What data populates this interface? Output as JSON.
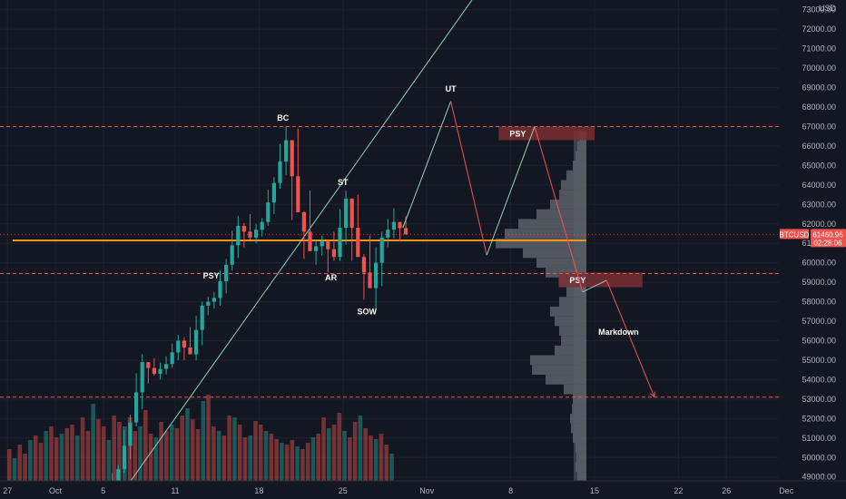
{
  "chart_data": {
    "type": "candlestick",
    "symbol": "BTCUSD",
    "currency": "USD",
    "last_price": "61460.96",
    "countdown": "02:28:06",
    "y_ticks": [
      49000,
      50000,
      51000,
      52000,
      53000,
      54000,
      55000,
      56000,
      57000,
      58000,
      59000,
      60000,
      61000,
      62000,
      63000,
      64000,
      65000,
      66000,
      67000,
      68000,
      69000,
      70000,
      71000,
      72000,
      73000
    ],
    "x_ticks": [
      "27",
      "Oct",
      "5",
      "11",
      "18",
      "25",
      "Nov",
      "8",
      "15",
      "22",
      "26",
      "Dec"
    ],
    "ylim": [
      48800,
      73500
    ],
    "colors": {
      "bg": "#131722",
      "up": "#26a69a",
      "down": "#ef5350",
      "level": "#f7931a",
      "dashed": "#ef5350",
      "trend": "#8fd1b8",
      "volume_profile": "#5d6169",
      "box": "#7a2e33"
    },
    "candles": [
      {
        "d": "Oct 6",
        "o": 48200,
        "h": 49600,
        "l": 48000,
        "c": 49400
      },
      {
        "d": "Oct 7",
        "o": 49400,
        "h": 52200,
        "l": 49200,
        "c": 51800
      },
      {
        "d": "Oct 8",
        "o": 51800,
        "h": 55300,
        "l": 51600,
        "c": 54900
      },
      {
        "d": "Oct 9",
        "o": 54900,
        "h": 55100,
        "l": 53800,
        "c": 54300
      },
      {
        "d": "Oct 10",
        "o": 54300,
        "h": 55200,
        "l": 54000,
        "c": 54800
      },
      {
        "d": "Oct 11",
        "o": 54800,
        "h": 56300,
        "l": 54600,
        "c": 56000
      },
      {
        "d": "Oct 12",
        "o": 56000,
        "h": 56700,
        "l": 55000,
        "c": 55300
      },
      {
        "d": "Oct 13",
        "o": 55300,
        "h": 58000,
        "l": 55000,
        "c": 57800
      },
      {
        "d": "Oct 14",
        "o": 57800,
        "h": 58500,
        "l": 57300,
        "c": 58200
      },
      {
        "d": "Oct 15",
        "o": 58200,
        "h": 60200,
        "l": 57800,
        "c": 59900
      },
      {
        "d": "Oct 16",
        "o": 59900,
        "h": 62400,
        "l": 59600,
        "c": 61900
      },
      {
        "d": "Oct 17",
        "o": 61900,
        "h": 62500,
        "l": 60800,
        "c": 61300
      },
      {
        "d": "Oct 18",
        "o": 61300,
        "h": 62300,
        "l": 61000,
        "c": 62100
      },
      {
        "d": "Oct 19",
        "o": 62100,
        "h": 64400,
        "l": 61900,
        "c": 64100
      },
      {
        "d": "Oct 20",
        "o": 64100,
        "h": 67000,
        "l": 63800,
        "c": 66300
      },
      {
        "d": "Oct 21",
        "o": 66300,
        "h": 66900,
        "l": 62200,
        "c": 62600
      },
      {
        "d": "Oct 22",
        "o": 62600,
        "h": 63700,
        "l": 60200,
        "c": 60600
      },
      {
        "d": "Oct 23",
        "o": 60600,
        "h": 61400,
        "l": 59900,
        "c": 61100
      },
      {
        "d": "Oct 24",
        "o": 61100,
        "h": 61600,
        "l": 59500,
        "c": 60300
      },
      {
        "d": "Oct 25",
        "o": 60300,
        "h": 63700,
        "l": 60100,
        "c": 63300
      },
      {
        "d": "Oct 26",
        "o": 63300,
        "h": 63500,
        "l": 60100,
        "c": 60300
      },
      {
        "d": "Oct 27",
        "o": 60300,
        "h": 61400,
        "l": 58100,
        "c": 58700
      },
      {
        "d": "Oct 28",
        "o": 58700,
        "h": 61600,
        "l": 57600,
        "c": 61300
      },
      {
        "d": "Oct 29",
        "o": 61300,
        "h": 62800,
        "l": 60800,
        "c": 62100
      },
      {
        "d": "Oct 30",
        "o": 62100,
        "h": 62400,
        "l": 61100,
        "c": 61460
      }
    ],
    "levels": {
      "orange": 61150,
      "dashed": [
        67000,
        59450,
        53100
      ]
    },
    "labels": [
      {
        "text": "PSY",
        "x": "Oct 14",
        "y": 59200
      },
      {
        "text": "BC",
        "x": "Oct 20",
        "y": 67300
      },
      {
        "text": "ST",
        "x": "Oct 25",
        "y": 64000
      },
      {
        "text": "AR",
        "x": "Oct 24",
        "y": 59100
      },
      {
        "text": "SOW",
        "x": "Oct 27",
        "y": 57350
      },
      {
        "text": "UT",
        "x": "Nov 3",
        "y": 68800
      }
    ],
    "zones": [
      {
        "text": "PSY",
        "x0": "Nov 7",
        "x1": "Nov 15",
        "y0": 66300,
        "y1": 67000
      },
      {
        "text": "PSY",
        "x0": "Nov 12",
        "x1": "Nov 19",
        "y0": 58750,
        "y1": 59500
      }
    ],
    "annotations": [
      {
        "text": "Markdown",
        "x": "Nov 17",
        "y": 56300
      }
    ],
    "volume_profile": [
      {
        "p": 49000,
        "v": 0.1
      },
      {
        "p": 49500,
        "v": 0.12
      },
      {
        "p": 50000,
        "v": 0.11
      },
      {
        "p": 50500,
        "v": 0.12
      },
      {
        "p": 51000,
        "v": 0.15
      },
      {
        "p": 51500,
        "v": 0.17
      },
      {
        "p": 52000,
        "v": 0.18
      },
      {
        "p": 52500,
        "v": 0.16
      },
      {
        "p": 53000,
        "v": 0.15
      },
      {
        "p": 53500,
        "v": 0.25
      },
      {
        "p": 54000,
        "v": 0.45
      },
      {
        "p": 54500,
        "v": 0.6
      },
      {
        "p": 55000,
        "v": 0.62
      },
      {
        "p": 55500,
        "v": 0.35
      },
      {
        "p": 56000,
        "v": 0.28
      },
      {
        "p": 56500,
        "v": 0.3
      },
      {
        "p": 57000,
        "v": 0.35
      },
      {
        "p": 57500,
        "v": 0.4
      },
      {
        "p": 58000,
        "v": 0.3
      },
      {
        "p": 58500,
        "v": 0.22
      },
      {
        "p": 59000,
        "v": 0.3
      },
      {
        "p": 59500,
        "v": 0.45
      },
      {
        "p": 60000,
        "v": 0.55
      },
      {
        "p": 60500,
        "v": 0.7
      },
      {
        "p": 61000,
        "v": 1.0
      },
      {
        "p": 61500,
        "v": 0.9
      },
      {
        "p": 62000,
        "v": 0.75
      },
      {
        "p": 62500,
        "v": 0.55
      },
      {
        "p": 63000,
        "v": 0.4
      },
      {
        "p": 63500,
        "v": 0.3
      },
      {
        "p": 64000,
        "v": 0.28
      },
      {
        "p": 64500,
        "v": 0.22
      },
      {
        "p": 65000,
        "v": 0.15
      },
      {
        "p": 65500,
        "v": 0.12
      },
      {
        "p": 66000,
        "v": 0.1
      },
      {
        "p": 66500,
        "v": 0.08
      }
    ],
    "volumes": [
      0.35,
      0.25,
      0.4,
      0.3,
      0.45,
      0.5,
      0.42,
      0.55,
      0.6,
      0.48,
      0.52,
      0.58,
      0.62,
      0.5,
      0.7,
      0.55,
      0.85,
      0.68,
      0.6,
      0.45,
      0.72,
      0.65,
      0.6,
      0.7,
      0.55,
      0.6,
      0.78,
      0.52,
      0.48,
      0.65,
      0.55,
      0.62,
      0.58,
      0.72,
      0.8,
      0.68,
      0.57,
      0.88,
      0.95,
      0.6,
      0.55,
      0.5,
      0.72,
      0.7,
      0.62,
      0.48,
      0.5,
      0.66,
      0.62,
      0.55,
      0.52,
      0.46,
      0.42,
      0.4,
      0.45,
      0.38,
      0.35,
      0.42,
      0.48,
      0.52,
      0.7,
      0.58,
      0.62,
      0.75,
      0.55,
      0.48,
      0.65,
      0.72,
      0.58,
      0.5,
      0.46,
      0.52,
      0.4,
      0.3
    ],
    "projection_path": [
      {
        "x": "Oct 30",
        "y": 61800
      },
      {
        "x": "Nov 3",
        "y": 68300
      },
      {
        "x": "Nov 6",
        "y": 60400
      },
      {
        "x": "Nov 10",
        "y": 67000
      },
      {
        "x": "Nov 14",
        "y": 58500
      },
      {
        "x": "Nov 16",
        "y": 59100
      },
      {
        "x": "Nov 20",
        "y": 53100
      }
    ]
  }
}
